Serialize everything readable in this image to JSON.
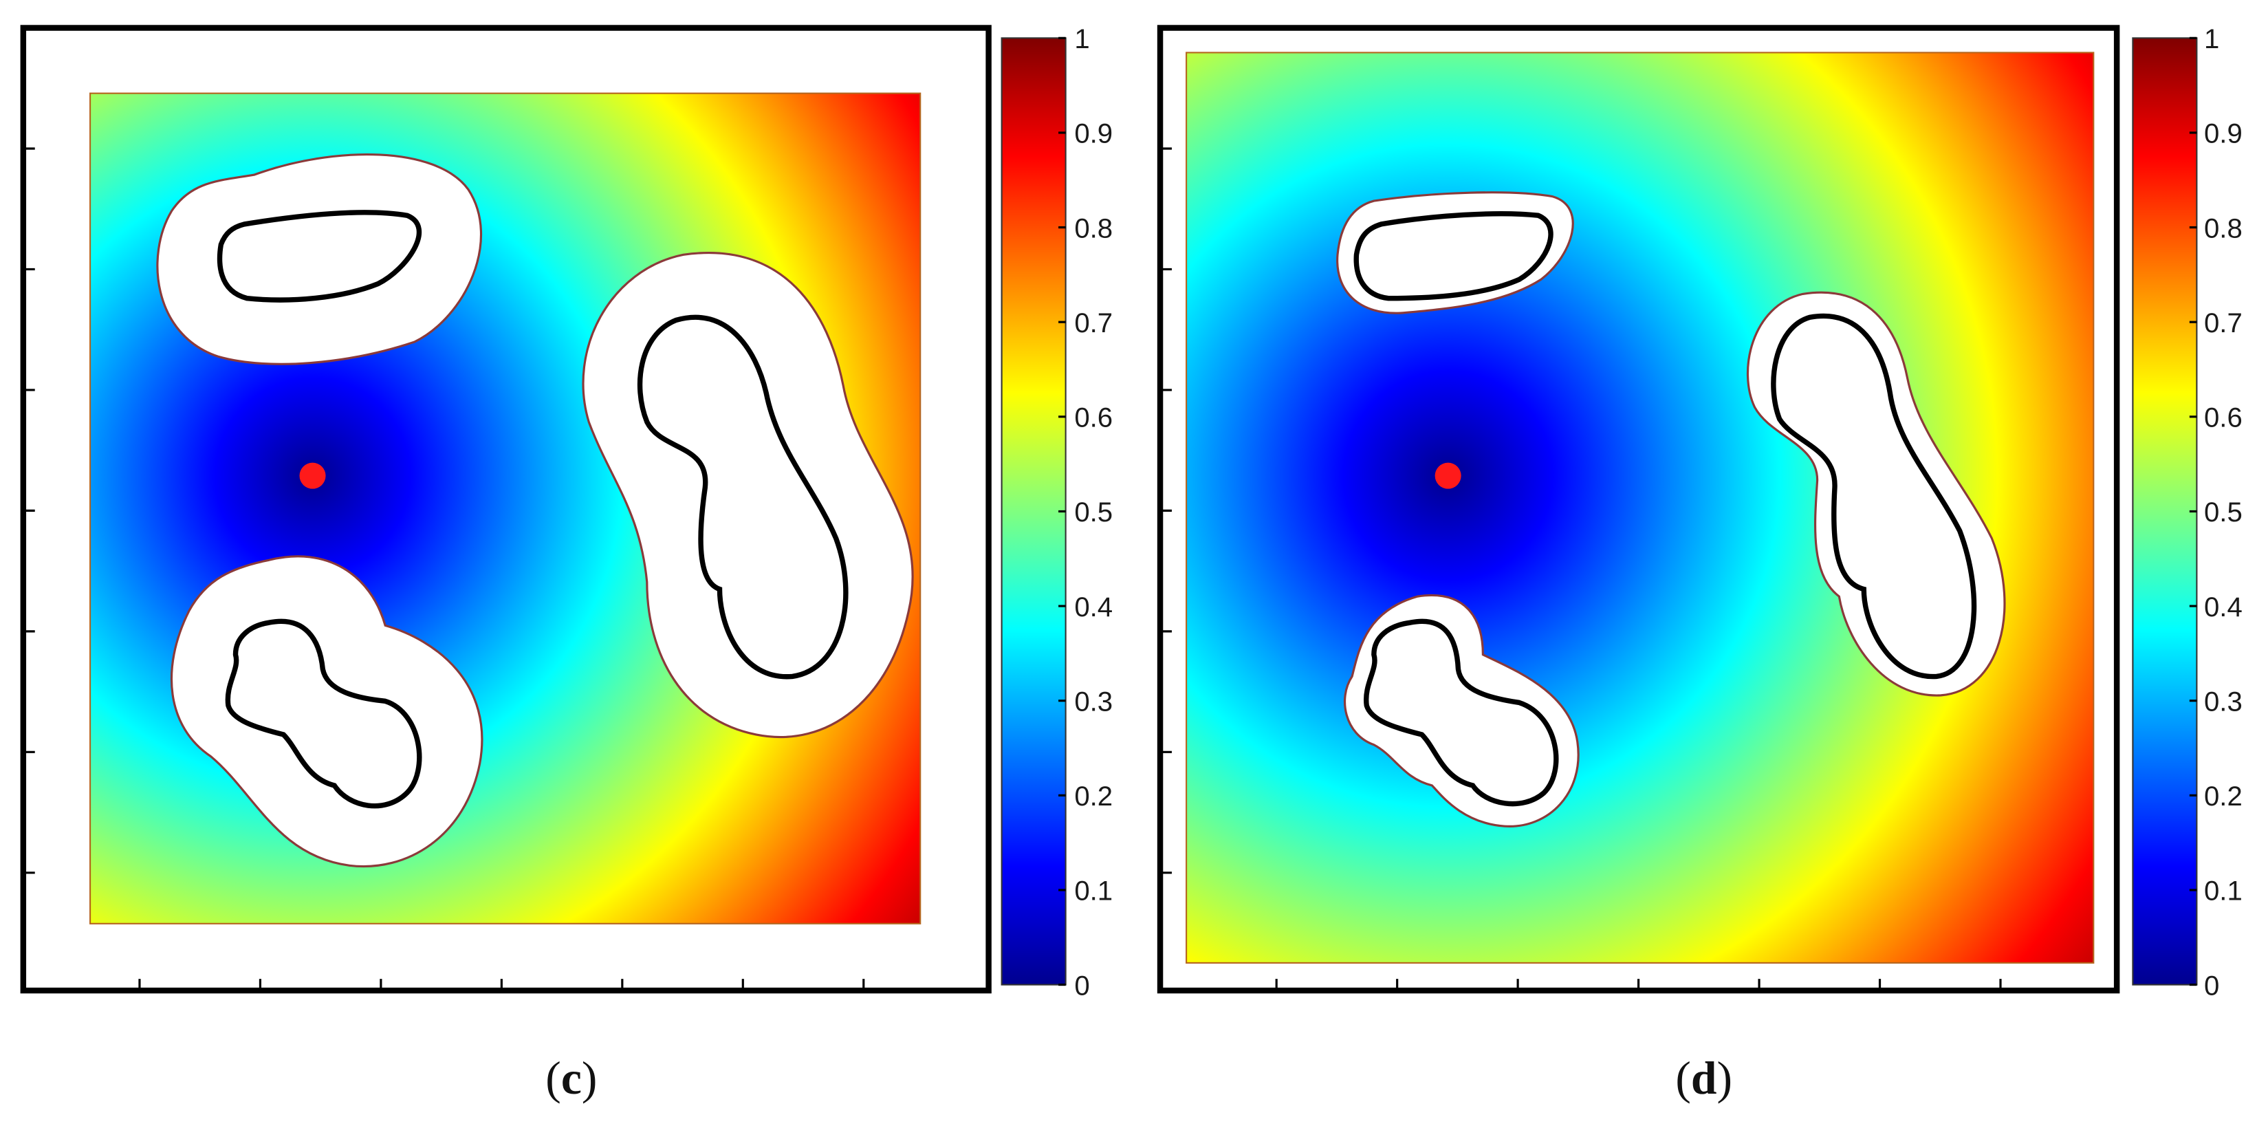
{
  "chart_data": [
    {
      "type": "heatmap",
      "panel_label": "c",
      "colormap": "jet",
      "colorbar": {
        "range": [
          0,
          1
        ],
        "ticks": [
          0,
          0.1,
          0.2,
          0.3,
          0.4,
          0.5,
          0.6,
          0.7,
          0.8,
          0.9,
          1
        ]
      },
      "source_marker": {
        "color": "#ff1a1a"
      },
      "obstacles": 3,
      "boundary_margin": "wide",
      "grid": false
    },
    {
      "type": "heatmap",
      "panel_label": "d",
      "colormap": "jet",
      "colorbar": {
        "range": [
          0,
          1
        ],
        "ticks": [
          0,
          0.1,
          0.2,
          0.3,
          0.4,
          0.5,
          0.6,
          0.7,
          0.8,
          0.9,
          1
        ]
      },
      "source_marker": {
        "color": "#ff1a1a"
      },
      "obstacles": 3,
      "boundary_margin": "narrow",
      "grid": false
    }
  ],
  "captions": {
    "c": {
      "open": "(",
      "letter": "c",
      "close": ")"
    },
    "d": {
      "open": "(",
      "letter": "d",
      "close": ")"
    }
  },
  "colorbar_labels": [
    "0",
    "0.1",
    "0.2",
    "0.3",
    "0.4",
    "0.5",
    "0.6",
    "0.7",
    "0.8",
    "0.9",
    "1"
  ],
  "colors": {
    "frame": "#000000",
    "obstacle_edge": "#8b3a3a",
    "source": "#ff1a1a"
  }
}
